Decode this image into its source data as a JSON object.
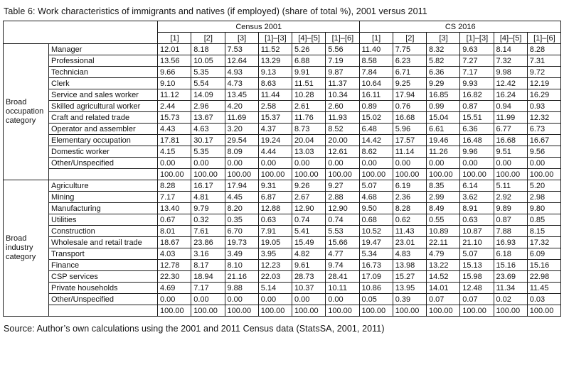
{
  "title": "Table 6: Work characteristics of immigrants and natives (if employed) (share of total %), 2001 versus 2011",
  "source": "Source: Author’s own calculations using the 2001 and 2011 Census data (StatsSA, 2001, 2011)",
  "table": {
    "col_groups": [
      "Census 2001",
      "CS 2016"
    ],
    "col_headers": [
      "[1]",
      "[2]",
      "[3]",
      "[1]–[3]",
      "[4]–[5]",
      "[1]–[6]"
    ],
    "row_groups": [
      {
        "label": "Broad occupation category",
        "rows": [
          {
            "label": "Manager",
            "values": [
              "12.01",
              "8.18",
              "7.53",
              "11.52",
              "5.26",
              "5.56",
              "11.40",
              "7.75",
              "8.32",
              "9.63",
              "8.14",
              "8.28"
            ]
          },
          {
            "label": "Professional",
            "values": [
              "13.56",
              "10.05",
              "12.64",
              "13.29",
              "6.88",
              "7.19",
              "8.58",
              "6.23",
              "5.82",
              "7.27",
              "7.32",
              "7.31"
            ]
          },
          {
            "label": "Technician",
            "values": [
              "9.66",
              "5.35",
              "4.93",
              "9.13",
              "9.91",
              "9.87",
              "7.84",
              "6.71",
              "6.36",
              "7.17",
              "9.98",
              "9.72"
            ]
          },
          {
            "label": "Clerk",
            "values": [
              "9.10",
              "5.54",
              "4.73",
              "8.63",
              "11.51",
              "11.37",
              "10.64",
              "9.25",
              "9.29",
              "9.93",
              "12.42",
              "12.19"
            ]
          },
          {
            "label": "Service and sales worker",
            "values": [
              "11.12",
              "14.09",
              "13.45",
              "11.44",
              "10.28",
              "10.34",
              "16.11",
              "17.94",
              "16.85",
              "16.82",
              "16.24",
              "16.29"
            ]
          },
          {
            "label": "Skilled agricultural worker",
            "values": [
              "2.44",
              "2.96",
              "4.20",
              "2.58",
              "2.61",
              "2.60",
              "0.89",
              "0.76",
              "0.99",
              "0.87",
              "0.94",
              "0.93"
            ]
          },
          {
            "label": "Craft and related trade",
            "values": [
              "15.73",
              "13.67",
              "11.69",
              "15.37",
              "11.76",
              "11.93",
              "15.02",
              "16.68",
              "15.04",
              "15.51",
              "11.99",
              "12.32"
            ]
          },
          {
            "label": "Operator and assembler",
            "values": [
              "4.43",
              "4.63",
              "3.20",
              "4.37",
              "8.73",
              "8.52",
              "6.48",
              "5.96",
              "6.61",
              "6.36",
              "6.77",
              "6.73"
            ]
          },
          {
            "label": "Elementary occupation",
            "values": [
              "17.81",
              "30.17",
              "29.54",
              "19.24",
              "20.04",
              "20.00",
              "14.42",
              "17.57",
              "19.46",
              "16.48",
              "16.68",
              "16.67"
            ]
          },
          {
            "label": "Domestic worker",
            "values": [
              "4.15",
              "5.35",
              "8.09",
              "4.44",
              "13.03",
              "12.61",
              "8.62",
              "11.14",
              "11.26",
              "9.96",
              "9.51",
              "9.56"
            ]
          },
          {
            "label": "Other/Unspecified",
            "values": [
              "0.00",
              "0.00",
              "0.00",
              "0.00",
              "0.00",
              "0.00",
              "0.00",
              "0.00",
              "0.00",
              "0.00",
              "0.00",
              "0.00"
            ]
          },
          {
            "label": "",
            "values": [
              "100.00",
              "100.00",
              "100.00",
              "100.00",
              "100.00",
              "100.00",
              "100.00",
              "100.00",
              "100.00",
              "100.00",
              "100.00",
              "100.00"
            ]
          }
        ]
      },
      {
        "label": "Broad industry category",
        "rows": [
          {
            "label": "Agriculture",
            "values": [
              "8.28",
              "16.17",
              "17.94",
              "9.31",
              "9.26",
              "9.27",
              "5.07",
              "6.19",
              "8.35",
              "6.14",
              "5.11",
              "5.20"
            ]
          },
          {
            "label": "Mining",
            "values": [
              "7.17",
              "4.81",
              "4.45",
              "6.87",
              "2.67",
              "2.88",
              "4.68",
              "2.36",
              "2.99",
              "3.62",
              "2.92",
              "2.98"
            ]
          },
          {
            "label": "Manufacturing",
            "values": [
              "13.40",
              "9.79",
              "8.20",
              "12.88",
              "12.90",
              "12.90",
              "9.50",
              "8.28",
              "8.49",
              "8.91",
              "9.89",
              "9.80"
            ]
          },
          {
            "label": "Utilities",
            "values": [
              "0.67",
              "0.32",
              "0.35",
              "0.63",
              "0.74",
              "0.74",
              "0.68",
              "0.62",
              "0.55",
              "0.63",
              "0.87",
              "0.85"
            ]
          },
          {
            "label": "Construction",
            "values": [
              "8.01",
              "7.61",
              "6.70",
              "7.91",
              "5.41",
              "5.53",
              "10.52",
              "11.43",
              "10.89",
              "10.87",
              "7.88",
              "8.15"
            ]
          },
          {
            "label": "Wholesale and retail trade",
            "values": [
              "18.67",
              "23.86",
              "19.73",
              "19.05",
              "15.49",
              "15.66",
              "19.47",
              "23.01",
              "22.11",
              "21.10",
              "16.93",
              "17.32"
            ]
          },
          {
            "label": "Transport",
            "values": [
              "4.03",
              "3.16",
              "3.49",
              "3.95",
              "4.82",
              "4.77",
              "5.34",
              "4.83",
              "4.79",
              "5.07",
              "6.18",
              "6.09"
            ]
          },
          {
            "label": "Finance",
            "values": [
              "12.78",
              "8.17",
              "8.10",
              "12.23",
              "9.61",
              "9.74",
              "16.73",
              "13.98",
              "13.22",
              "15.13",
              "15.16",
              "15.16"
            ]
          },
          {
            "label": "CSP services",
            "values": [
              "22.30",
              "18.94",
              "21.16",
              "22.03",
              "28.73",
              "28.41",
              "17.09",
              "15.27",
              "14.52",
              "15.98",
              "23.69",
              "22.98"
            ]
          },
          {
            "label": "Private households",
            "values": [
              "4.69",
              "7.17",
              "9.88",
              "5.14",
              "10.37",
              "10.11",
              "10.86",
              "13.95",
              "14.01",
              "12.48",
              "11.34",
              "11.45"
            ]
          },
          {
            "label": "Other/Unspecified",
            "values": [
              "0.00",
              "0.00",
              "0.00",
              "0.00",
              "0.00",
              "0.00",
              "0.05",
              "0.39",
              "0.07",
              "0.07",
              "0.02",
              "0.03"
            ]
          },
          {
            "label": "",
            "values": [
              "100.00",
              "100.00",
              "100.00",
              "100.00",
              "100.00",
              "100.00",
              "100.00",
              "100.00",
              "100.00",
              "100.00",
              "100.00",
              "100.00"
            ]
          }
        ]
      }
    ]
  }
}
